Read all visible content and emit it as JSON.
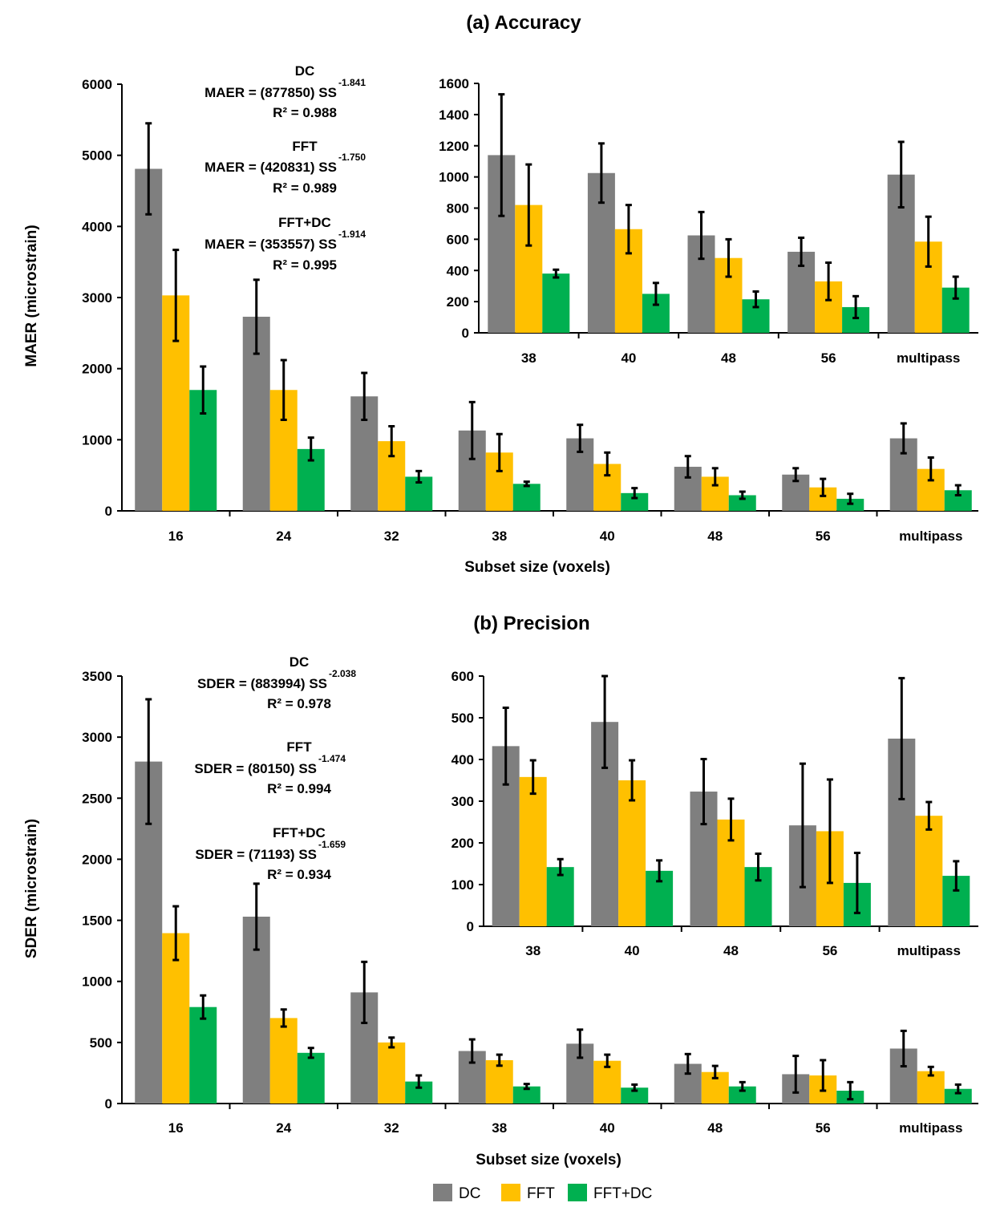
{
  "series_names": [
    "DC",
    "FFT",
    "FFT+DC"
  ],
  "colors": {
    "DC": "#7f7f7f",
    "FFT": "#ffc000",
    "FFT+DC": "#00b050"
  },
  "chart_data": [
    {
      "id": "accuracy-main",
      "type": "bar",
      "title": "(a) Accuracy",
      "xlabel": "Subset size (voxels)",
      "ylabel": "MAER (microstrain)",
      "ylim": [
        0,
        6000
      ],
      "yticks": [
        "0",
        "1000",
        "2000",
        "3000",
        "4000",
        "5000",
        "6000"
      ],
      "categories": [
        "16",
        "24",
        "32",
        "38",
        "40",
        "48",
        "56",
        "multipass"
      ],
      "series": [
        {
          "name": "DC",
          "values": [
            4810,
            2730,
            1610,
            1130,
            1020,
            620,
            510,
            1020
          ],
          "errors": [
            640,
            520,
            330,
            400,
            190,
            150,
            90,
            210
          ]
        },
        {
          "name": "FFT",
          "values": [
            3030,
            1700,
            980,
            820,
            660,
            480,
            330,
            590
          ],
          "errors": [
            640,
            420,
            210,
            260,
            160,
            120,
            120,
            160
          ]
        },
        {
          "name": "FFT+DC",
          "values": [
            1700,
            870,
            480,
            380,
            250,
            220,
            170,
            290
          ],
          "errors": [
            330,
            160,
            80,
            30,
            70,
            50,
            70,
            70
          ]
        }
      ],
      "annotations": [
        {
          "label": "DC",
          "equation": "MAER = (877850) SS",
          "exponent": "-1.841",
          "r2": "R² = 0.988"
        },
        {
          "label": "FFT",
          "equation": "MAER = (420831) SS",
          "exponent": "-1.750",
          "r2": "R² = 0.989"
        },
        {
          "label": "FFT+DC",
          "equation": "MAER = (353557) SS",
          "exponent": "-1.914",
          "r2": "R² = 0.995"
        }
      ]
    },
    {
      "id": "accuracy-inset",
      "type": "bar",
      "title": "",
      "xlabel": "",
      "ylabel": "",
      "ylim": [
        0,
        1600
      ],
      "yticks": [
        "0",
        "200",
        "400",
        "600",
        "800",
        "1000",
        "1200",
        "1400",
        "1600"
      ],
      "categories": [
        "38",
        "40",
        "48",
        "56",
        "multipass"
      ],
      "series": [
        {
          "name": "DC",
          "values": [
            1140,
            1025,
            625,
            520,
            1015
          ],
          "errors": [
            390,
            190,
            150,
            90,
            210
          ]
        },
        {
          "name": "FFT",
          "values": [
            820,
            665,
            480,
            330,
            585
          ],
          "errors": [
            260,
            155,
            120,
            120,
            160
          ]
        },
        {
          "name": "FFT+DC",
          "values": [
            380,
            250,
            215,
            165,
            290
          ],
          "errors": [
            25,
            70,
            50,
            70,
            70
          ]
        }
      ]
    },
    {
      "id": "precision-main",
      "type": "bar",
      "title": "(b) Precision",
      "xlabel": "Subset size (voxels)",
      "ylabel": "SDER (microstrain)",
      "ylim": [
        0,
        3500
      ],
      "yticks": [
        "0",
        "500",
        "1000",
        "1500",
        "2000",
        "2500",
        "3000",
        "3500"
      ],
      "categories": [
        "16",
        "24",
        "32",
        "38",
        "40",
        "48",
        "56",
        "multipass"
      ],
      "series": [
        {
          "name": "DC",
          "values": [
            2800,
            1530,
            910,
            430,
            490,
            325,
            240,
            450
          ],
          "errors": [
            510,
            270,
            250,
            95,
            115,
            80,
            150,
            145
          ]
        },
        {
          "name": "FFT",
          "values": [
            1395,
            700,
            500,
            355,
            350,
            258,
            230,
            265
          ],
          "errors": [
            220,
            70,
            40,
            45,
            50,
            50,
            125,
            35
          ]
        },
        {
          "name": "FFT+DC",
          "values": [
            790,
            415,
            180,
            140,
            130,
            140,
            105,
            120
          ],
          "errors": [
            95,
            40,
            50,
            20,
            25,
            35,
            70,
            35
          ]
        }
      ],
      "annotations": [
        {
          "label": "DC",
          "equation": "SDER = (883994) SS",
          "exponent": "-2.038",
          "r2": "R² = 0.978"
        },
        {
          "label": "FFT",
          "equation": "SDER = (80150) SS",
          "exponent": "-1.474",
          "r2": "R² = 0.994"
        },
        {
          "label": "FFT+DC",
          "equation": "SDER = (71193) SS",
          "exponent": "-1.659",
          "r2": "R² = 0.934"
        }
      ]
    },
    {
      "id": "precision-inset",
      "type": "bar",
      "title": "",
      "xlabel": "",
      "ylabel": "",
      "ylim": [
        0,
        600
      ],
      "yticks": [
        "0",
        "100",
        "200",
        "300",
        "400",
        "500",
        "600"
      ],
      "categories": [
        "38",
        "40",
        "48",
        "56",
        "multipass"
      ],
      "series": [
        {
          "name": "DC",
          "values": [
            432,
            490,
            323,
            242,
            450
          ],
          "errors": [
            92,
            110,
            78,
            148,
            145
          ]
        },
        {
          "name": "FFT",
          "values": [
            358,
            350,
            256,
            228,
            265
          ],
          "errors": [
            40,
            48,
            50,
            124,
            33
          ]
        },
        {
          "name": "FFT+DC",
          "values": [
            142,
            133,
            142,
            104,
            121
          ],
          "errors": [
            19,
            25,
            32,
            72,
            35
          ]
        }
      ]
    }
  ]
}
